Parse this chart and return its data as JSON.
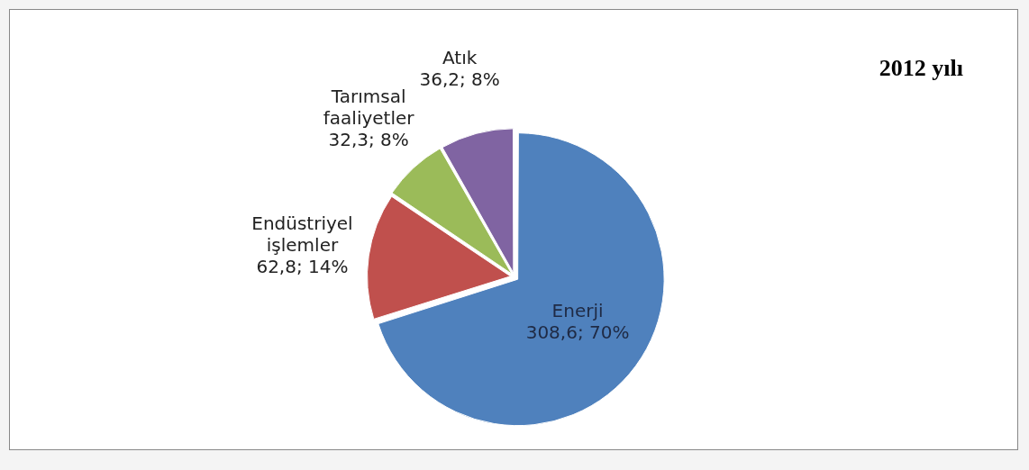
{
  "chart_data": {
    "type": "pie",
    "title": "2012 yılı",
    "categories": [
      "Enerji",
      "Endüstriyel işlemler",
      "Tarımsal faaliyetler",
      "Atık"
    ],
    "values": [
      308.6,
      62.8,
      32.3,
      36.2
    ],
    "colors": [
      "#4f81bd",
      "#c0504d",
      "#9bbb59",
      "#8064a2"
    ],
    "value_labels": [
      "308,6; 70%",
      "62,8; 14%",
      "32,3; 8%",
      "36,2; 8%"
    ],
    "legend": false
  }
}
